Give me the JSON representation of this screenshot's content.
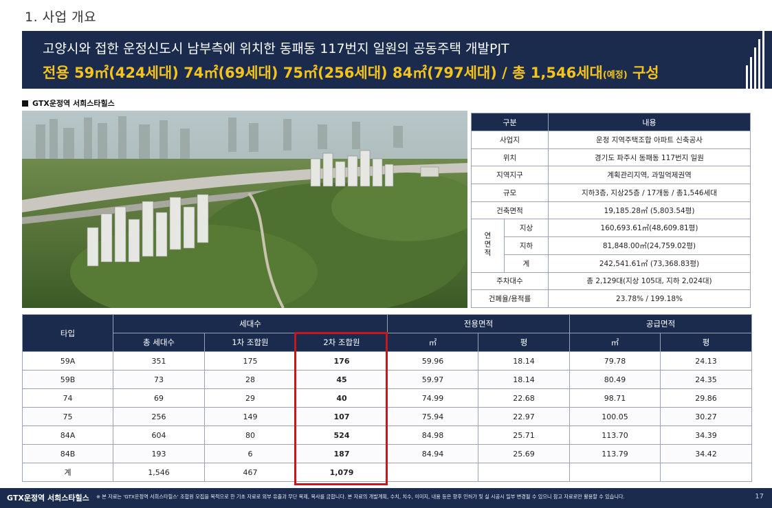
{
  "section_title": "1. 사업 개요",
  "banner": {
    "line1": "고양시와 접한 운정신도시 남부측에 위치한 동패동 117번지 일원의 공동주택 개발PJT",
    "line2_main": "전용 59㎡(424세대) 74㎡(69세대) 75㎡(256세대) 84㎡(797세대) / 총 1,546세대",
    "line2_small": "(예정)",
    "line2_tail": " 구성"
  },
  "subhead": "GTX운정역 서희스타힐스",
  "info_table": {
    "header_left": "구분",
    "header_right": "내용",
    "rows": [
      {
        "label": "사업지",
        "value": "운정 지역주택조합 아파트 신축공사"
      },
      {
        "label": "위치",
        "value": "경기도 파주시 동패동 117번지 일원"
      },
      {
        "label": "지역지구",
        "value": "계획관리지역, 과밀억제권역"
      },
      {
        "label": "규모",
        "value": "지하3층, 지상25층 / 17개동 / 총1,546세대"
      },
      {
        "label": "건축면적",
        "value": "19,185.28㎡ (5,803.54평)"
      }
    ],
    "area_group_label": "연면적",
    "area_rows": [
      {
        "label": "지상",
        "value": "160,693.61㎡(48,609.81평)"
      },
      {
        "label": "지하",
        "value": "81,848.00㎡(24,759.02평)"
      },
      {
        "label": "계",
        "value": "242,541.61㎡ (73,368.83평)"
      }
    ],
    "tail_rows": [
      {
        "label": "주차대수",
        "value": "총 2,129대(지상 105대, 지하 2,024대)"
      },
      {
        "label": "건폐율/용적률",
        "value": "23.78% / 199.18%"
      }
    ]
  },
  "units_table": {
    "h_type": "타입",
    "h_households": "세대수",
    "h_exclusive": "전용면적",
    "h_supply": "공급면적",
    "sub_total": "총 세대수",
    "sub_first": "1차 조합원",
    "sub_second": "2차 조합원",
    "sub_m2_a": "㎡",
    "sub_py_a": "평",
    "sub_m2_b": "㎡",
    "sub_py_b": "평",
    "rows": [
      {
        "type": "59A",
        "total": "351",
        "first": "175",
        "second": "176",
        "ex_m2": "59.96",
        "ex_py": "18.14",
        "sup_m2": "79.78",
        "sup_py": "24.13"
      },
      {
        "type": "59B",
        "total": "73",
        "first": "28",
        "second": "45",
        "ex_m2": "59.97",
        "ex_py": "18.14",
        "sup_m2": "80.49",
        "sup_py": "24.35"
      },
      {
        "type": "74",
        "total": "69",
        "first": "29",
        "second": "40",
        "ex_m2": "74.99",
        "ex_py": "22.68",
        "sup_m2": "98.71",
        "sup_py": "29.86"
      },
      {
        "type": "75",
        "total": "256",
        "first": "149",
        "second": "107",
        "ex_m2": "75.94",
        "ex_py": "22.97",
        "sup_m2": "100.05",
        "sup_py": "30.27"
      },
      {
        "type": "84A",
        "total": "604",
        "first": "80",
        "second": "524",
        "ex_m2": "84.98",
        "ex_py": "25.71",
        "sup_m2": "113.70",
        "sup_py": "34.39"
      },
      {
        "type": "84B",
        "total": "193",
        "first": "6",
        "second": "187",
        "ex_m2": "84.94",
        "ex_py": "25.69",
        "sup_m2": "113.79",
        "sup_py": "34.42"
      },
      {
        "type": "계",
        "total": "1,546",
        "first": "467",
        "second": "1,079",
        "ex_m2": "",
        "ex_py": "",
        "sup_m2": "",
        "sup_py": ""
      }
    ]
  },
  "footer": {
    "brand": "GTX운정역 서희스타힐스",
    "note": "※ 본 자료는 'GTX운정역 서희스타힐스' 조합원 모집을 목적으로 한 기초 자료로 외부 유출과 무단 복제, 복사를 금합니다. 본 자료의 개발계획, 수치, 치수, 이미지, 내용 등은 향후 인허가 및 실 시공시 일부 변경될 수 있으니 참고 자료로만 활용할 수 있습니다.",
    "page": "17"
  },
  "colors": {
    "navy": "#1b2b4e",
    "gold": "#f5c41c",
    "highlight_red": "#c8161d"
  }
}
